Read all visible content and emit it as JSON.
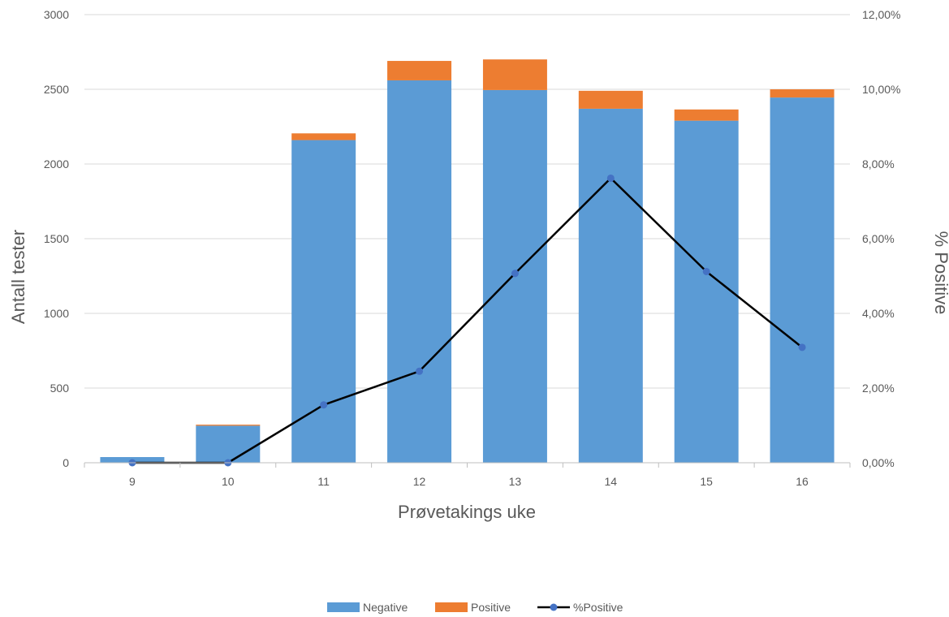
{
  "chart_data": {
    "type": "bar",
    "stacked": true,
    "categories": [
      "9",
      "10",
      "11",
      "12",
      "13",
      "14",
      "15",
      "16"
    ],
    "series": [
      {
        "name": "Negative",
        "type": "bar",
        "axis": "left",
        "color": "#5B9BD5",
        "values": [
          38,
          248,
          2160,
          2560,
          2495,
          2370,
          2290,
          2445
        ]
      },
      {
        "name": "Positive",
        "type": "bar",
        "axis": "left",
        "color": "#ED7D31",
        "values": [
          0,
          7,
          45,
          130,
          205,
          120,
          75,
          55
        ]
      },
      {
        "name": "%Positive",
        "type": "line",
        "axis": "right",
        "color": "#000000",
        "marker_color": "#4472C4",
        "values": [
          0.0,
          0.0,
          1.55,
          2.45,
          5.07,
          7.62,
          5.12,
          3.09
        ]
      }
    ],
    "xlabel": "Prøvetakings uke",
    "ylabel": "Antall tester",
    "ylabel_right": "% Positive",
    "ylim": [
      0,
      3000
    ],
    "yticks": [
      "0",
      "500",
      "1000",
      "1500",
      "2000",
      "2500",
      "3000"
    ],
    "ylim_right": [
      0,
      12
    ],
    "yticks_right": [
      "0,00%",
      "2,00%",
      "4,00%",
      "6,00%",
      "8,00%",
      "10,00%",
      "12,00%"
    ],
    "grid": true,
    "legend": "bottom"
  }
}
